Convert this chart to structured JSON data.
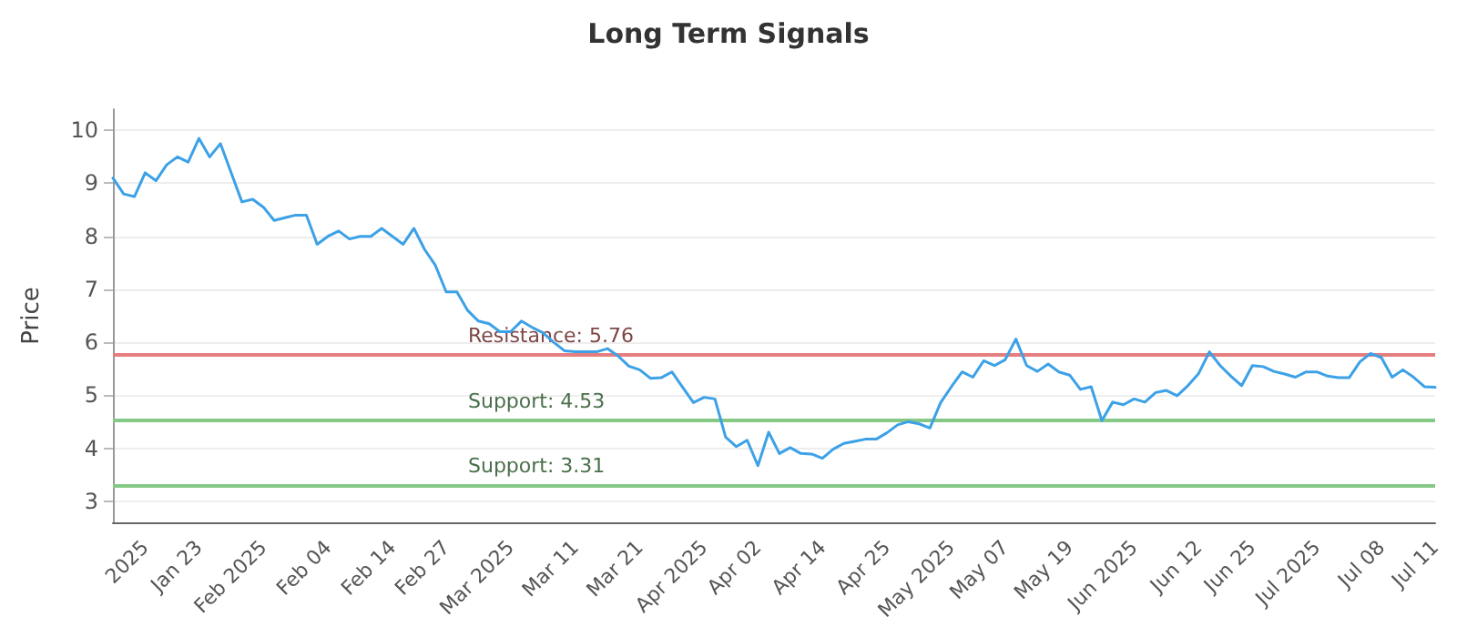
{
  "chart_data": {
    "type": "line",
    "title": "Long Term Signals",
    "ylabel": "Price",
    "categories": [
      null,
      null,
      null,
      "2025",
      null,
      null,
      null,
      null,
      "Jan 23",
      null,
      null,
      null,
      null,
      null,
      "Feb 2025",
      null,
      null,
      null,
      null,
      null,
      "Feb 04",
      null,
      null,
      null,
      null,
      null,
      "Feb 14",
      null,
      null,
      null,
      null,
      "Feb 27",
      null,
      null,
      null,
      null,
      null,
      "Mar 2025",
      null,
      null,
      null,
      null,
      null,
      "Mar 11",
      null,
      null,
      null,
      null,
      null,
      "Mar 21",
      null,
      null,
      null,
      null,
      null,
      "Apr 2025",
      null,
      null,
      null,
      null,
      "Apr 02",
      null,
      null,
      null,
      null,
      null,
      "Apr 14",
      null,
      null,
      null,
      null,
      null,
      "Apr 25",
      null,
      null,
      null,
      null,
      null,
      "May 2025",
      null,
      null,
      null,
      null,
      "May 07",
      null,
      null,
      null,
      null,
      null,
      "May 19",
      null,
      null,
      null,
      null,
      null,
      "Jun 2025",
      null,
      null,
      null,
      null,
      null,
      "Jun 12",
      null,
      null,
      null,
      null,
      "Jun 25",
      null,
      null,
      null,
      null,
      null,
      "Jul 2025",
      null,
      null,
      null,
      null,
      null,
      "Jul 08",
      null,
      null,
      null,
      null,
      "Jul 11"
    ],
    "series": [
      {
        "color": "#3ca1e6",
        "values": [
          9.1,
          8.8,
          8.75,
          9.2,
          9.05,
          9.35,
          9.5,
          9.4,
          9.85,
          9.5,
          9.75,
          9.2,
          8.65,
          8.7,
          8.55,
          8.3,
          8.35,
          8.4,
          8.4,
          7.85,
          8.0,
          8.1,
          7.95,
          8.0,
          8.0,
          8.15,
          8.0,
          7.85,
          8.15,
          7.75,
          7.45,
          6.95,
          6.95,
          6.6,
          6.4,
          6.35,
          6.2,
          6.2,
          6.4,
          6.28,
          6.18,
          6.0,
          5.84,
          5.82,
          5.82,
          5.82,
          5.88,
          5.74,
          5.55,
          5.48,
          5.32,
          5.33,
          5.44,
          5.15,
          4.86,
          4.96,
          4.93,
          4.21,
          4.03,
          4.15,
          3.67,
          4.3,
          3.9,
          4.01,
          3.9,
          3.89,
          3.81,
          3.98,
          4.09,
          4.13,
          4.17,
          4.17,
          4.29,
          4.44,
          4.5,
          4.46,
          4.38,
          4.86,
          5.16,
          5.44,
          5.34,
          5.65,
          5.56,
          5.67,
          6.06,
          5.56,
          5.45,
          5.59,
          5.44,
          5.38,
          5.11,
          5.16,
          4.52,
          4.87,
          4.82,
          4.93,
          4.87,
          5.05,
          5.09,
          4.99,
          5.18,
          5.41,
          5.82,
          5.56,
          5.36,
          5.18,
          5.56,
          5.54,
          5.45,
          5.4,
          5.34,
          5.44,
          5.44,
          5.36,
          5.33,
          5.33,
          5.63,
          5.79,
          5.71,
          5.34,
          5.48,
          5.34,
          5.16,
          5.15
        ]
      }
    ],
    "ylim": [
      2.6,
      10.4
    ],
    "yticks": [
      3,
      4,
      5,
      6,
      7,
      8,
      9,
      10
    ],
    "grid": "y",
    "marker": "none",
    "line_style": "solid",
    "ref_lines": [
      {
        "axis": "y",
        "value": 5.76,
        "label": "Resistance: 5.76",
        "color": "#e57f7f"
      },
      {
        "axis": "y",
        "value": 4.53,
        "label": "Support: 4.53",
        "color": "#86c986"
      },
      {
        "axis": "y",
        "value": 3.31,
        "label": "Support: 3.31",
        "color": "#86c986"
      }
    ]
  }
}
